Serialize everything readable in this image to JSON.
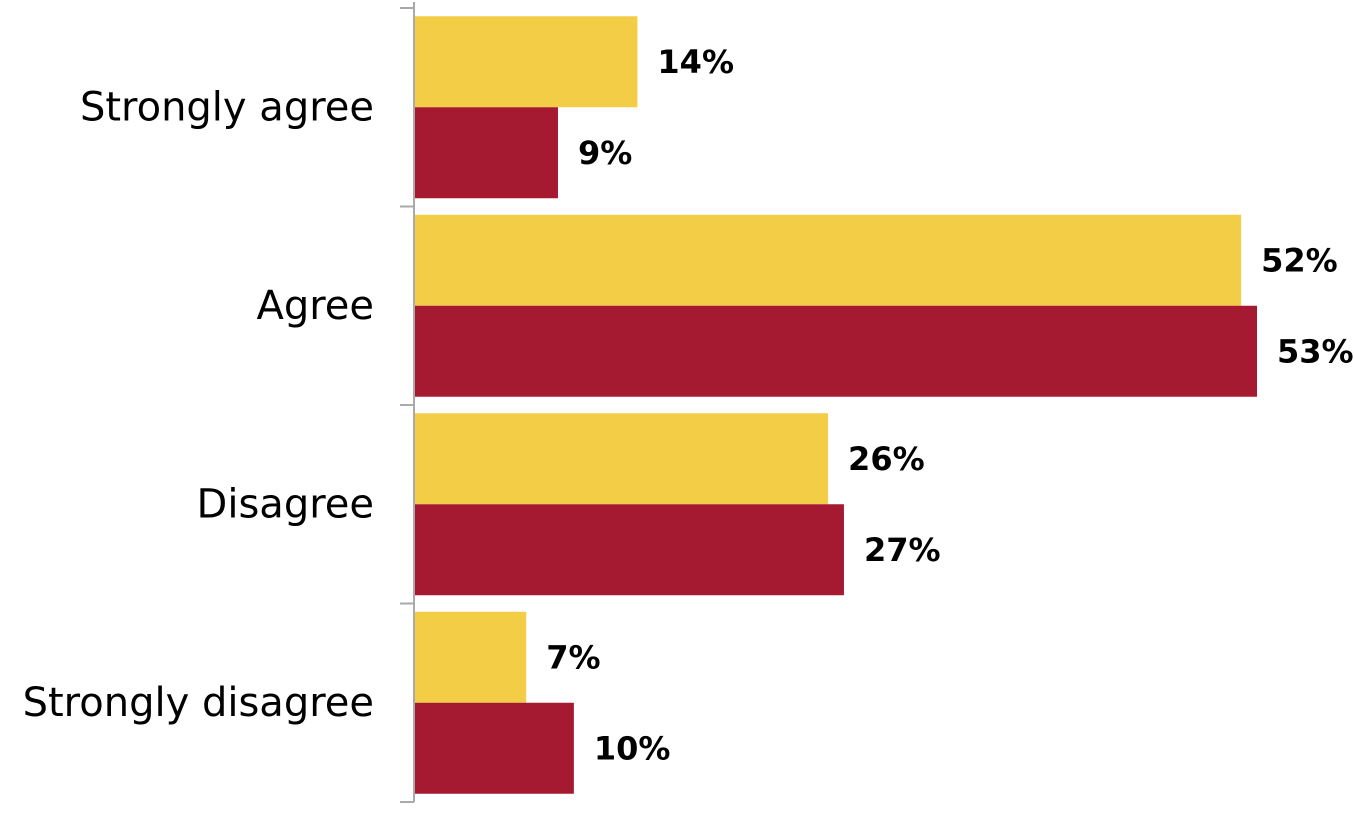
{
  "chart_data": {
    "type": "bar",
    "orientation": "horizontal",
    "categories": [
      "Strongly agree",
      "Agree",
      "Disagree",
      "Strongly disagree"
    ],
    "series": [
      {
        "values": [
          14,
          52,
          26,
          7
        ],
        "labels": [
          "14%",
          "52%",
          "26%",
          "7%"
        ],
        "color": "#F2CD45"
      },
      {
        "values": [
          9,
          53,
          27,
          10
        ],
        "labels": [
          "9%",
          "53%",
          "27%",
          "10%"
        ],
        "color": "#A61A31"
      }
    ],
    "title": "",
    "xlabel": "",
    "ylabel": "",
    "xlim": [
      0,
      53
    ],
    "grid": false,
    "legend": "none",
    "axis_color": "#AAAAAA"
  }
}
